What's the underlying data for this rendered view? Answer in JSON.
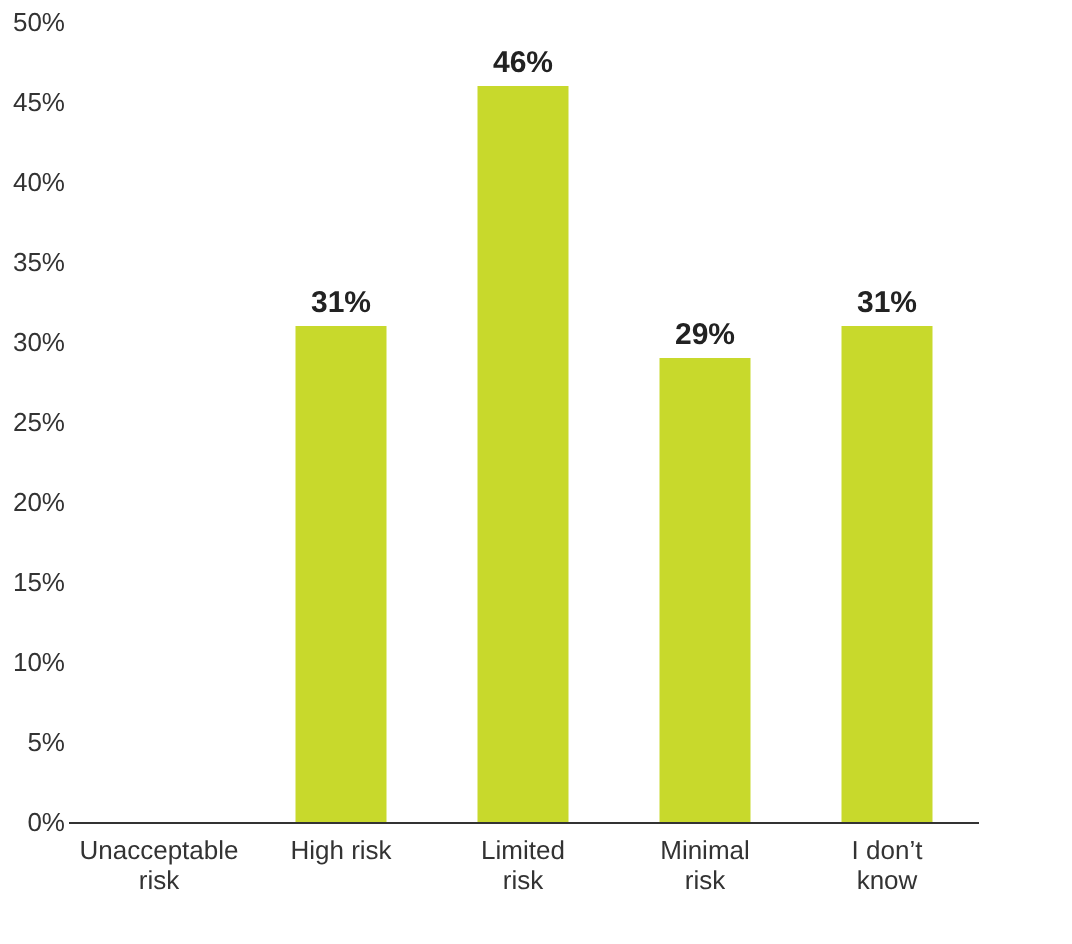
{
  "chart_data": {
    "type": "bar",
    "categories": [
      "Unacceptable risk",
      "High risk",
      "Limited risk",
      "Minimal risk",
      "I don’t know"
    ],
    "values": [
      0,
      31,
      46,
      29,
      31
    ],
    "value_labels": [
      null,
      "31%",
      "46%",
      "29%",
      "31%"
    ],
    "color": "#c8d92c",
    "ylim": [
      0,
      50
    ],
    "yticks": [
      {
        "value": 0,
        "label": "0%"
      },
      {
        "value": 5,
        "label": "5%"
      },
      {
        "value": 10,
        "label": "10%"
      },
      {
        "value": 15,
        "label": "15%"
      },
      {
        "value": 20,
        "label": "20%"
      },
      {
        "value": 25,
        "label": "25%"
      },
      {
        "value": 30,
        "label": "30%"
      },
      {
        "value": 35,
        "label": "35%"
      },
      {
        "value": 40,
        "label": "40%"
      },
      {
        "value": 45,
        "label": "45%"
      },
      {
        "value": 50,
        "label": "50%"
      }
    ],
    "grid": false
  }
}
